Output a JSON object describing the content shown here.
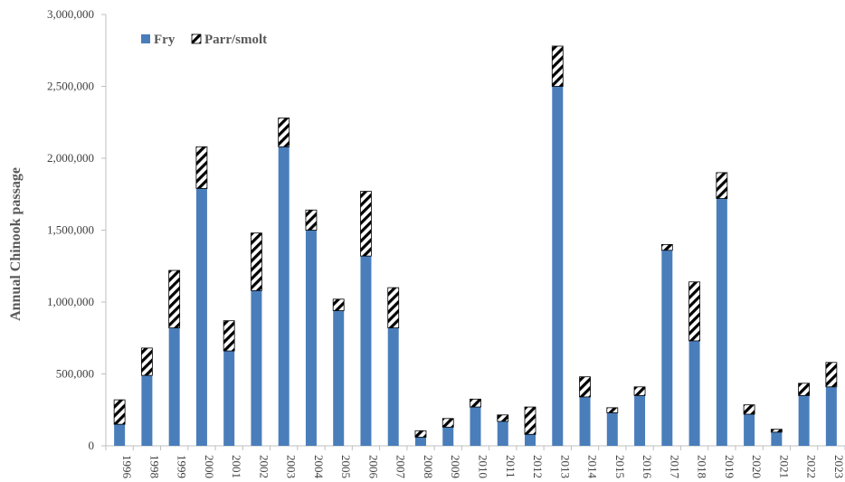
{
  "chart_data": {
    "type": "bar",
    "stacked": true,
    "categories": [
      "1996",
      "1998",
      "1999",
      "2000",
      "2001",
      "2002",
      "2003",
      "2004",
      "2005",
      "2006",
      "2007",
      "2008",
      "2009",
      "2010",
      "2011",
      "2012",
      "2013",
      "2014",
      "2015",
      "2016",
      "2017",
      "2018",
      "2019",
      "2020",
      "2021",
      "2022",
      "2023"
    ],
    "series": [
      {
        "name": "Fry",
        "color": "#4a7ebb",
        "values": [
          150000,
          490000,
          820000,
          1790000,
          660000,
          1080000,
          2080000,
          1500000,
          940000,
          1320000,
          820000,
          60000,
          130000,
          270000,
          170000,
          80000,
          2500000,
          340000,
          230000,
          350000,
          1360000,
          730000,
          1720000,
          220000,
          95000,
          350000,
          410000
        ]
      },
      {
        "name": "Parr/smolt",
        "pattern": "diagonal-hatch",
        "values": [
          170000,
          190000,
          400000,
          290000,
          210000,
          400000,
          200000,
          140000,
          80000,
          450000,
          280000,
          45000,
          60000,
          55000,
          45000,
          190000,
          280000,
          140000,
          35000,
          60000,
          40000,
          410000,
          180000,
          65000,
          20000,
          85000,
          170000
        ]
      }
    ],
    "ylabel": "Annual Chinook passage",
    "xlabel": "",
    "ylim": [
      0,
      3000000
    ],
    "y_ticks": [
      "0",
      "500,000",
      "1,000,000",
      "1,500,000",
      "2,000,000",
      "2,500,000",
      "3,000,000"
    ],
    "y_tick_values": [
      0,
      500000,
      1000000,
      1500000,
      2000000,
      2500000,
      3000000
    ],
    "legend": {
      "position": "top-left",
      "entries": [
        "Fry",
        "Parr/smolt"
      ]
    },
    "grid": false
  }
}
